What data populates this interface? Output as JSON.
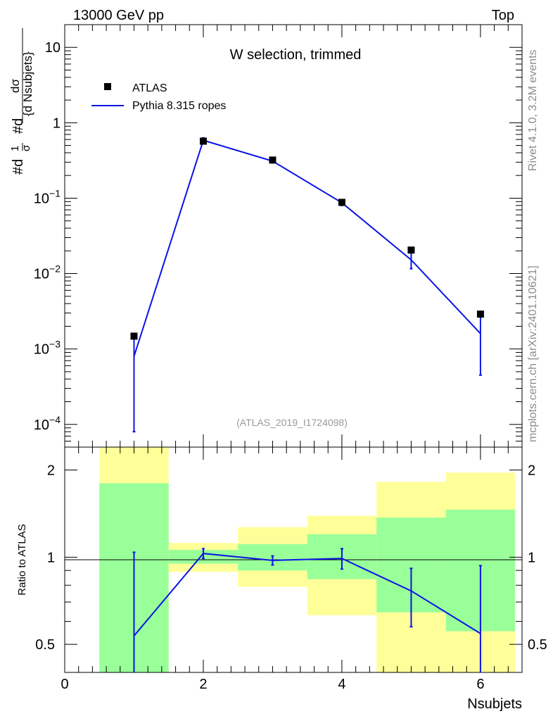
{
  "header": {
    "left": "13000 GeV pp",
    "right": "Top"
  },
  "side_labels": {
    "rivet": "Rivet 4.1.0,  3.2M events",
    "source": "mcplots.cern.ch [arXiv:2401.10621]"
  },
  "chart_data": [
    {
      "type": "line",
      "title": "W selection, trimmed",
      "analysis_id": "(ATLAS_2019_I1724098)",
      "ylabel_parts": [
        "#d",
        "1",
        "σ",
        "#d",
        "dσ",
        "{d Nsubjets}"
      ],
      "y_scale": "log",
      "ylim": [
        5e-05,
        20
      ],
      "xlim": [
        0,
        6.6
      ],
      "y_ticks": [
        {
          "value": 10,
          "label": "10"
        },
        {
          "value": 1,
          "label": "1"
        },
        {
          "value": 0.1,
          "label": "10",
          "exp": "−1"
        },
        {
          "value": 0.01,
          "label": "10",
          "exp": "−2"
        },
        {
          "value": 0.001,
          "label": "10",
          "exp": "−3"
        },
        {
          "value": 0.0001,
          "label": "10",
          "exp": "−4"
        }
      ],
      "legend": {
        "placement": "top-left",
        "entries": [
          "ATLAS",
          "Pythia 8.315 ropes"
        ]
      },
      "series": [
        {
          "name": "ATLAS",
          "marker": "square",
          "color": "#000000",
          "x": [
            1,
            2,
            3,
            4,
            5,
            6
          ],
          "y": [
            0.00148,
            0.57,
            0.32,
            0.088,
            0.0205,
            0.0029
          ]
        },
        {
          "name": "Pythia 8.315 ropes",
          "color": "#0a14e6",
          "x": [
            1,
            2,
            3,
            4,
            5,
            6
          ],
          "y": [
            0.0008,
            0.585,
            0.31,
            0.087,
            0.0152,
            0.0016
          ],
          "err_low": [
            8e-05,
            0.54,
            0.295,
            0.08,
            0.0116,
            0.00045
          ],
          "err_high": [
            0.0016,
            0.63,
            0.325,
            0.094,
            0.0195,
            0.0029
          ]
        }
      ]
    },
    {
      "type": "line",
      "ylabel": "Ratio to ATLAS",
      "xlabel": "Nsubjets",
      "y_scale": "log",
      "ylim": [
        0.4,
        2.4
      ],
      "xlim": [
        0,
        6.6
      ],
      "x_ticks": [
        "0",
        "2",
        "4",
        "6"
      ],
      "y_ticks": [
        "0.5",
        "1",
        "2"
      ],
      "reference_line": 1,
      "bands": {
        "bins": [
          [
            0.5,
            1.5
          ],
          [
            1.5,
            2.5
          ],
          [
            2.5,
            3.5
          ],
          [
            3.5,
            4.5
          ],
          [
            4.5,
            5.5
          ],
          [
            5.5,
            6.5
          ]
        ],
        "yellow": [
          [
            0.3,
            2.4
          ],
          [
            0.89,
            1.12
          ],
          [
            0.79,
            1.27
          ],
          [
            0.63,
            1.39
          ],
          [
            0.3,
            1.82
          ],
          [
            0.3,
            1.96
          ]
        ],
        "green": [
          [
            0.3,
            1.8
          ],
          [
            0.95,
            1.06
          ],
          [
            0.9,
            1.11
          ],
          [
            0.84,
            1.2
          ],
          [
            0.645,
            1.37
          ],
          [
            0.555,
            1.46
          ]
        ],
        "yellow_color": "#ffff99",
        "green_color": "#99ff99"
      },
      "series": [
        {
          "name": "Pythia 8.315 ropes",
          "color": "#0a14e6",
          "x": [
            1,
            2,
            3,
            4,
            5,
            6
          ],
          "y": [
            0.535,
            1.03,
            0.975,
            0.99,
            0.765,
            0.545
          ],
          "err_low": [
            0.3,
            0.99,
            0.94,
            0.91,
            0.575,
            0.3
          ],
          "err_high": [
            1.04,
            1.07,
            1.01,
            1.07,
            0.915,
            0.935
          ]
        }
      ]
    }
  ]
}
